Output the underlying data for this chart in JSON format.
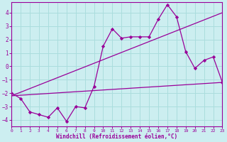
{
  "background_color": "#cceef0",
  "grid_color": "#aadddd",
  "line_color": "#990099",
  "marker_color": "#990099",
  "xlabel": "Windchill (Refroidissement éolien,°C)",
  "xlim": [
    0,
    23
  ],
  "ylim": [
    -4.5,
    4.8
  ],
  "yticks": [
    -4,
    -3,
    -2,
    -1,
    0,
    1,
    2,
    3,
    4
  ],
  "xticks": [
    0,
    1,
    2,
    3,
    4,
    5,
    6,
    7,
    8,
    9,
    10,
    11,
    12,
    13,
    14,
    15,
    16,
    17,
    18,
    19,
    20,
    21,
    22,
    23
  ],
  "main_x": [
    0,
    1,
    2,
    3,
    4,
    5,
    6,
    7,
    8,
    9,
    10,
    11,
    12,
    13,
    14,
    15,
    16,
    17,
    18,
    19,
    20,
    21,
    22,
    23
  ],
  "main_y": [
    -2.0,
    -2.4,
    -3.4,
    -3.6,
    -3.8,
    -3.1,
    -4.1,
    -3.0,
    -3.1,
    -1.5,
    1.5,
    2.8,
    2.1,
    2.2,
    2.2,
    2.2,
    3.5,
    4.6,
    3.7,
    1.1,
    -0.15,
    0.45,
    0.7,
    -1.2
  ],
  "trend1_x": [
    0,
    23
  ],
  "trend1_y": [
    -2.2,
    -1.2
  ],
  "trend2_x": [
    0,
    23
  ],
  "trend2_y": [
    -2.2,
    4.0
  ]
}
